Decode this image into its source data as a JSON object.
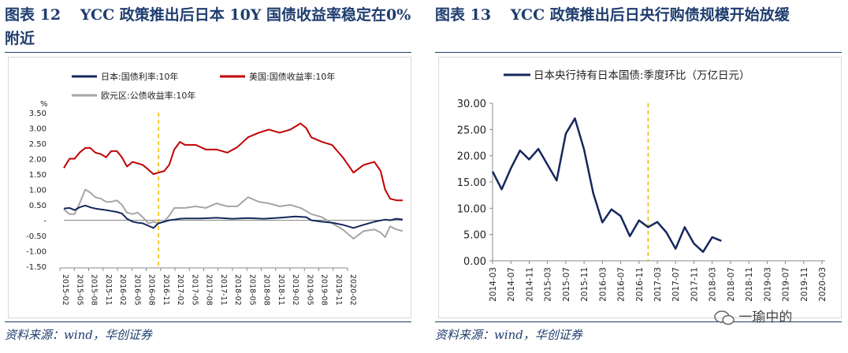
{
  "panels": [
    {
      "figure_label": "图表",
      "figure_number": "12",
      "title": "YCC 政策推出后日本 10Y 国债收益率稳定在0%附近",
      "source": "资料来源：wind，华创证券"
    },
    {
      "figure_label": "图表",
      "figure_number": "13",
      "title": "YCC 政策推出后日央行购债规模开始放缓",
      "source": "资料来源：wind，华创证券"
    }
  ],
  "watermark": "一瑜中的",
  "chart_data": [
    {
      "type": "line",
      "unit_label": "%",
      "ylim": [
        -1.5,
        3.5
      ],
      "y_ticks": [
        3.5,
        3.0,
        2.5,
        2.0,
        1.5,
        1.0,
        0.5,
        0.0,
        -0.5,
        -1.0,
        -1.5
      ],
      "y_tick_labels": [
        "3.50",
        "3.00",
        "2.50",
        "2.00",
        "1.50",
        "1.00",
        "0.50",
        "-",
        "-0.50",
        "-1.00",
        "-1.50"
      ],
      "x_tick_labels": [
        "2015-02",
        "2015-05",
        "2015-08",
        "2015-11",
        "2016-02",
        "2016-05",
        "2016-08",
        "2016-11",
        "2017-02",
        "2017-05",
        "2017-08",
        "2017-11",
        "2018-02",
        "2018-05",
        "2018-08",
        "2018-11",
        "2019-02",
        "2019-05",
        "2019-08",
        "2019-11",
        "2020-02"
      ],
      "xlim": [
        2015.08,
        2020.45
      ],
      "grid": false,
      "legend": "top",
      "annotation_line_x": 2016.58,
      "annotation_color": "#e8b800",
      "series": [
        {
          "name": "日本:国债利率:10年",
          "color": "#15285c",
          "x": [
            2015.08,
            2015.17,
            2015.25,
            2015.33,
            2015.42,
            2015.5,
            2015.58,
            2015.67,
            2015.75,
            2015.83,
            2015.92,
            2016.0,
            2016.08,
            2016.17,
            2016.25,
            2016.33,
            2016.42,
            2016.5,
            2016.58,
            2016.67,
            2016.75,
            2016.83,
            2016.92,
            2017.0,
            2017.25,
            2017.5,
            2017.75,
            2018.0,
            2018.25,
            2018.5,
            2018.75,
            2018.92,
            2019.0,
            2019.17,
            2019.33,
            2019.5,
            2019.67,
            2019.83,
            2020.0,
            2020.17,
            2020.25,
            2020.35,
            2020.45
          ],
          "y": [
            0.38,
            0.4,
            0.33,
            0.42,
            0.48,
            0.42,
            0.38,
            0.35,
            0.33,
            0.3,
            0.27,
            0.22,
            0.05,
            -0.05,
            -0.08,
            -0.1,
            -0.18,
            -0.25,
            -0.1,
            -0.05,
            0.0,
            0.02,
            0.05,
            0.06,
            0.06,
            0.08,
            0.05,
            0.07,
            0.05,
            0.08,
            0.12,
            0.1,
            0.0,
            -0.05,
            -0.08,
            -0.15,
            -0.25,
            -0.15,
            -0.05,
            0.02,
            0.0,
            0.05,
            0.02
          ]
        },
        {
          "name": "美国:国债收益率:10年",
          "color": "#c00000",
          "x": [
            2015.08,
            2015.17,
            2015.25,
            2015.33,
            2015.42,
            2015.5,
            2015.58,
            2015.67,
            2015.75,
            2015.83,
            2015.92,
            2016.0,
            2016.08,
            2016.17,
            2016.25,
            2016.33,
            2016.42,
            2016.5,
            2016.58,
            2016.67,
            2016.75,
            2016.83,
            2016.92,
            2017.0,
            2017.17,
            2017.33,
            2017.5,
            2017.67,
            2017.83,
            2018.0,
            2018.17,
            2018.33,
            2018.5,
            2018.67,
            2018.83,
            2018.92,
            2019.0,
            2019.17,
            2019.33,
            2019.5,
            2019.67,
            2019.83,
            2020.0,
            2020.1,
            2020.17,
            2020.25,
            2020.35,
            2020.45
          ],
          "y": [
            1.7,
            2.0,
            2.0,
            2.2,
            2.35,
            2.35,
            2.2,
            2.15,
            2.05,
            2.25,
            2.25,
            2.05,
            1.75,
            1.9,
            1.85,
            1.8,
            1.65,
            1.5,
            1.55,
            1.6,
            1.8,
            2.3,
            2.55,
            2.45,
            2.45,
            2.3,
            2.3,
            2.2,
            2.38,
            2.7,
            2.85,
            2.95,
            2.85,
            2.95,
            3.15,
            3.0,
            2.7,
            2.55,
            2.45,
            2.05,
            1.55,
            1.8,
            1.9,
            1.6,
            1.0,
            0.7,
            0.65,
            0.65
          ]
        },
        {
          "name": "欧元区:公债收益率:10年",
          "color": "#a6a6a6",
          "x": [
            2015.08,
            2015.17,
            2015.25,
            2015.33,
            2015.42,
            2015.5,
            2015.58,
            2015.67,
            2015.75,
            2015.83,
            2015.92,
            2016.0,
            2016.08,
            2016.17,
            2016.25,
            2016.33,
            2016.42,
            2016.5,
            2016.58,
            2016.67,
            2016.75,
            2016.83,
            2016.92,
            2017.0,
            2017.17,
            2017.33,
            2017.5,
            2017.67,
            2017.83,
            2018.0,
            2018.17,
            2018.33,
            2018.5,
            2018.67,
            2018.83,
            2018.92,
            2019.0,
            2019.17,
            2019.33,
            2019.5,
            2019.67,
            2019.83,
            2020.0,
            2020.1,
            2020.17,
            2020.25,
            2020.35,
            2020.45
          ],
          "y": [
            0.35,
            0.2,
            0.2,
            0.55,
            1.0,
            0.9,
            0.75,
            0.7,
            0.6,
            0.6,
            0.65,
            0.5,
            0.25,
            0.2,
            0.25,
            0.1,
            -0.1,
            -0.05,
            -0.1,
            -0.05,
            0.15,
            0.4,
            0.4,
            0.4,
            0.45,
            0.4,
            0.55,
            0.45,
            0.45,
            0.75,
            0.6,
            0.55,
            0.45,
            0.5,
            0.4,
            0.3,
            0.2,
            0.1,
            -0.1,
            -0.3,
            -0.6,
            -0.35,
            -0.3,
            -0.4,
            -0.55,
            -0.2,
            -0.3,
            -0.35
          ]
        }
      ]
    },
    {
      "type": "line",
      "ylim": [
        0,
        30
      ],
      "y_ticks": [
        30,
        25,
        20,
        15,
        10,
        5,
        0
      ],
      "y_tick_labels": [
        "30.00",
        "25.00",
        "20.00",
        "15.00",
        "10.00",
        "5.00",
        "0.00"
      ],
      "x_tick_labels": [
        "2014-03",
        "2014-07",
        "2014-11",
        "2015-03",
        "2015-07",
        "2015-11",
        "2016-03",
        "2016-07",
        "2016-11",
        "2017-03",
        "2017-07",
        "2017-11",
        "2018-03",
        "2018-07",
        "2018-11",
        "2019-03",
        "2019-07",
        "2019-11",
        "2020-03"
      ],
      "grid": false,
      "legend": "top-left",
      "annotation_line_x": 8.5,
      "annotation_color": "#e8b800",
      "series": [
        {
          "name": "日本央行持有日本国债:季度环比（万亿日元）",
          "color": "#15285c",
          "x": [
            0,
            0.5,
            1,
            1.5,
            2,
            2.5,
            3,
            3.5,
            4,
            4.5,
            5,
            5.5,
            6,
            6.5,
            7,
            7.5,
            8,
            8.5,
            9,
            9.5,
            10,
            10.5,
            11,
            11.5,
            12,
            12.5,
            13,
            13.5,
            14,
            14.5,
            15,
            15.5,
            16,
            16.5,
            17,
            17.5,
            18
          ],
          "y": [
            17.0,
            13.6,
            17.6,
            21.0,
            19.3,
            21.3,
            18.3,
            15.3,
            24.2,
            27.1,
            21.2,
            12.9,
            7.3,
            9.8,
            8.5,
            4.7,
            7.7,
            6.4,
            7.4,
            5.4,
            2.3,
            6.4,
            3.3,
            1.7,
            4.5,
            3.8,
            null,
            null,
            null,
            null,
            null,
            null,
            null,
            null,
            null,
            null,
            null
          ]
        }
      ]
    }
  ]
}
